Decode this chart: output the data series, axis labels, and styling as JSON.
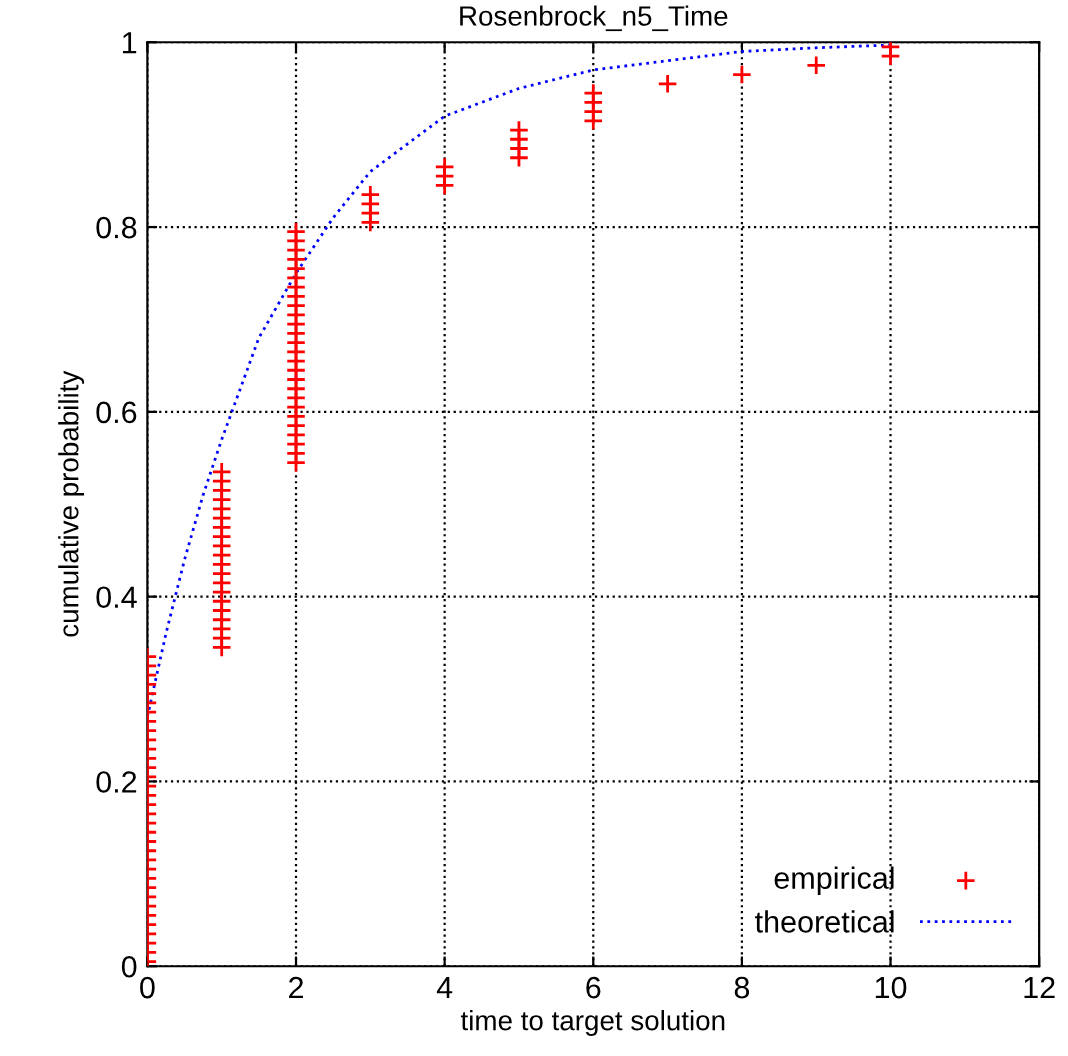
{
  "chart_data": {
    "type": "scatter",
    "title": "Rosenbrock_n5_Time",
    "xlabel": "time to target solution",
    "ylabel": "cumulative probability",
    "xlim": [
      0,
      12
    ],
    "xticks": [
      0,
      2,
      4,
      6,
      8,
      10,
      12
    ],
    "ylim": [
      0,
      1
    ],
    "yticks": [
      0,
      0.2,
      0.4,
      0.6,
      0.8,
      1
    ],
    "grid": true,
    "legend": "bottom right",
    "series": [
      {
        "name": "empirical",
        "color": "#ff0000",
        "marker": "cross",
        "x": [
          0,
          0,
          0,
          0,
          0,
          0,
          0,
          0,
          0,
          0,
          0,
          0,
          0,
          0,
          0,
          0,
          0,
          0,
          0,
          0,
          0,
          0,
          0,
          0,
          0,
          0,
          0,
          0,
          0,
          0,
          0,
          0,
          0,
          0,
          1,
          1,
          1,
          1,
          1,
          1,
          1,
          1,
          1,
          1,
          1,
          1,
          1,
          1,
          1,
          1,
          1,
          1,
          1,
          1,
          2,
          2,
          2,
          2,
          2,
          2,
          2,
          2,
          2,
          2,
          2,
          2,
          2,
          2,
          2,
          2,
          2,
          2,
          2,
          2,
          2,
          2,
          2,
          2,
          2,
          2,
          3,
          3,
          3,
          3,
          4,
          4,
          4,
          5,
          5,
          5,
          5,
          6,
          6,
          6,
          6,
          7,
          8,
          9,
          10,
          10
        ],
        "values": [
          0.005,
          0.015,
          0.025,
          0.035,
          0.045,
          0.055,
          0.065,
          0.075,
          0.085,
          0.095,
          0.105,
          0.115,
          0.125,
          0.135,
          0.145,
          0.155,
          0.165,
          0.175,
          0.185,
          0.195,
          0.205,
          0.215,
          0.225,
          0.235,
          0.245,
          0.255,
          0.265,
          0.275,
          0.285,
          0.295,
          0.305,
          0.315,
          0.325,
          0.335,
          0.345,
          0.355,
          0.365,
          0.375,
          0.385,
          0.395,
          0.405,
          0.415,
          0.425,
          0.435,
          0.445,
          0.455,
          0.465,
          0.475,
          0.485,
          0.495,
          0.505,
          0.515,
          0.525,
          0.535,
          0.545,
          0.555,
          0.565,
          0.575,
          0.585,
          0.595,
          0.605,
          0.615,
          0.625,
          0.635,
          0.645,
          0.655,
          0.665,
          0.675,
          0.685,
          0.695,
          0.705,
          0.715,
          0.725,
          0.735,
          0.745,
          0.755,
          0.765,
          0.775,
          0.785,
          0.795,
          0.805,
          0.815,
          0.825,
          0.835,
          0.845,
          0.855,
          0.865,
          0.875,
          0.885,
          0.895,
          0.905,
          0.915,
          0.925,
          0.935,
          0.945,
          0.955,
          0.965,
          0.975,
          0.985,
          0.995
        ]
      },
      {
        "name": "theoretical",
        "type": "line",
        "color": "#0000ff",
        "line_style": "dotted",
        "marker": "none",
        "x": [
          0,
          0.25,
          0.5,
          0.75,
          1,
          1.5,
          2,
          2.5,
          3,
          3.5,
          4,
          5,
          6,
          7,
          8,
          9,
          10
        ],
        "values": [
          0.27,
          0.36,
          0.44,
          0.51,
          0.57,
          0.68,
          0.75,
          0.81,
          0.86,
          0.89,
          0.92,
          0.95,
          0.97,
          0.98,
          0.99,
          0.994,
          0.997
        ]
      }
    ]
  }
}
